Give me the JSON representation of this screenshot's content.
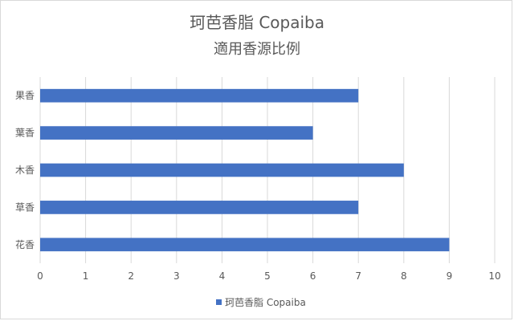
{
  "chart_data": {
    "type": "bar",
    "orientation": "horizontal",
    "title": "珂芭香脂 Copaiba",
    "subtitle": "適用香源比例",
    "categories": [
      "果香",
      "葉香",
      "木香",
      "草香",
      "花香"
    ],
    "series": [
      {
        "name": "珂芭香脂 Copaiba",
        "values": [
          7,
          6,
          8,
          7,
          9
        ],
        "color": "#4472c4"
      }
    ],
    "xlim": [
      0,
      10
    ],
    "x_ticks": [
      "0",
      "1",
      "2",
      "3",
      "4",
      "5",
      "6",
      "7",
      "8",
      "9",
      "10"
    ],
    "grid": "vertical",
    "legend_position": "bottom"
  }
}
